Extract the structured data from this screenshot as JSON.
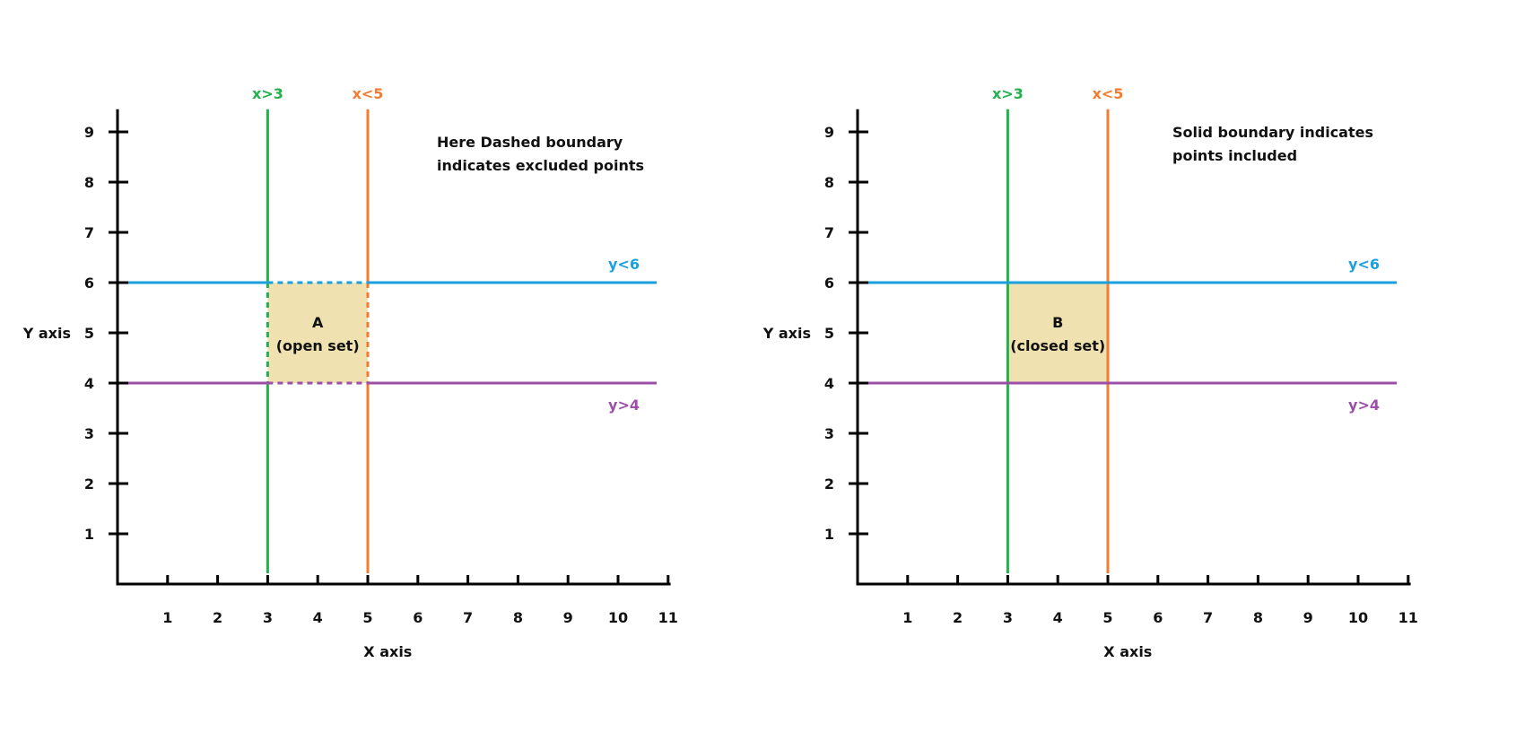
{
  "colors": {
    "axis": "#000000",
    "x_gt_3": "#22b14c",
    "x_lt_5": "#f47c30",
    "y_lt_6": "#1aa1dd",
    "y_gt_4": "#9b4fa6",
    "region_fill": "#efe1b0"
  },
  "chart_data": [
    {
      "type": "line",
      "xlabel": "X axis",
      "ylabel": "Y axis",
      "x_ticks": [
        1,
        2,
        3,
        4,
        5,
        6,
        7,
        8,
        9,
        10,
        11
      ],
      "y_ticks": [
        1,
        2,
        3,
        4,
        5,
        6,
        7,
        8,
        9
      ],
      "xlim": [
        0,
        11
      ],
      "ylim": [
        0,
        9.5
      ],
      "boundary_lines": [
        {
          "label": "x>3",
          "axis": "x",
          "value": 3,
          "color_key": "x_gt_3"
        },
        {
          "label": "x<5",
          "axis": "x",
          "value": 5,
          "color_key": "x_lt_5"
        },
        {
          "label": "y<6",
          "axis": "y",
          "value": 6,
          "color_key": "y_lt_6"
        },
        {
          "label": "y>4",
          "axis": "y",
          "value": 4,
          "color_key": "y_gt_4"
        }
      ],
      "region": {
        "x": [
          3,
          5
        ],
        "y": [
          4,
          6
        ],
        "name": "A",
        "caption": "(open set)",
        "boundary": "dashed"
      },
      "note": [
        "Here Dashed boundary",
        "indicates excluded points"
      ]
    },
    {
      "type": "line",
      "xlabel": "X axis",
      "ylabel": "Y axis",
      "x_ticks": [
        1,
        2,
        3,
        4,
        5,
        6,
        7,
        8,
        9,
        10,
        11
      ],
      "y_ticks": [
        1,
        2,
        3,
        4,
        5,
        6,
        7,
        8,
        9
      ],
      "xlim": [
        0,
        11
      ],
      "ylim": [
        0,
        9.5
      ],
      "boundary_lines": [
        {
          "label": "x>3",
          "axis": "x",
          "value": 3,
          "color_key": "x_gt_3"
        },
        {
          "label": "x<5",
          "axis": "x",
          "value": 5,
          "color_key": "x_lt_5"
        },
        {
          "label": "y<6",
          "axis": "y",
          "value": 6,
          "color_key": "y_lt_6"
        },
        {
          "label": "y>4",
          "axis": "y",
          "value": 4,
          "color_key": "y_gt_4"
        }
      ],
      "region": {
        "x": [
          3,
          5
        ],
        "y": [
          4,
          6
        ],
        "name": "B",
        "caption": "(closed set)",
        "boundary": "solid"
      },
      "note": [
        "Solid boundary indicates",
        "points included"
      ]
    }
  ]
}
